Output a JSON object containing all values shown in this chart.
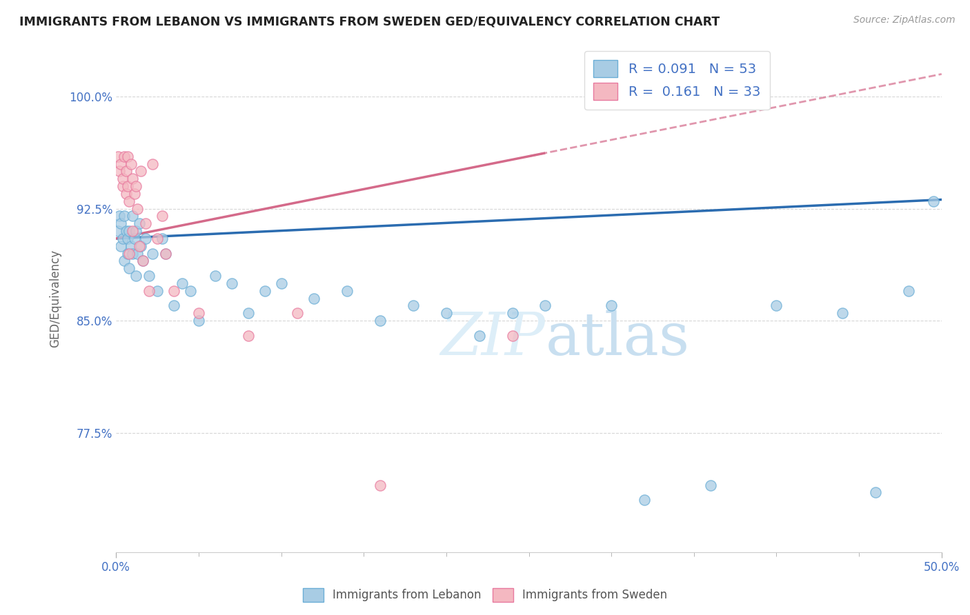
{
  "title": "IMMIGRANTS FROM LEBANON VS IMMIGRANTS FROM SWEDEN GED/EQUIVALENCY CORRELATION CHART",
  "source": "Source: ZipAtlas.com",
  "xlabel": "",
  "ylabel": "GED/Equivalency",
  "xlim": [
    0.0,
    0.5
  ],
  "ylim": [
    0.695,
    1.035
  ],
  "yticks": [
    0.775,
    0.85,
    0.925,
    1.0
  ],
  "ytick_labels": [
    "77.5%",
    "85.0%",
    "92.5%",
    "100.0%"
  ],
  "xticks": [
    0.0,
    0.5
  ],
  "xtick_labels": [
    "0.0%",
    "50.0%"
  ],
  "lebanon_color": "#a8cce4",
  "lebanon_edge": "#6baed6",
  "sweden_color": "#f4b8c1",
  "sweden_edge": "#e87a9f",
  "trend_lebanon_color": "#2b6cb0",
  "trend_sweden_color": "#d46a8a",
  "R_lebanon": 0.091,
  "N_lebanon": 53,
  "R_sweden": 0.161,
  "N_sweden": 33,
  "background_color": "#ffffff",
  "grid_color": "#cccccc",
  "lebanon_x": [
    0.001,
    0.002,
    0.003,
    0.003,
    0.004,
    0.005,
    0.005,
    0.006,
    0.007,
    0.007,
    0.008,
    0.008,
    0.009,
    0.01,
    0.01,
    0.011,
    0.012,
    0.012,
    0.013,
    0.014,
    0.015,
    0.016,
    0.018,
    0.02,
    0.022,
    0.025,
    0.028,
    0.03,
    0.035,
    0.04,
    0.045,
    0.05,
    0.06,
    0.07,
    0.08,
    0.09,
    0.1,
    0.12,
    0.14,
    0.16,
    0.18,
    0.2,
    0.22,
    0.24,
    0.26,
    0.3,
    0.32,
    0.36,
    0.4,
    0.44,
    0.46,
    0.48,
    0.495
  ],
  "lebanon_y": [
    0.91,
    0.92,
    0.915,
    0.9,
    0.905,
    0.89,
    0.92,
    0.91,
    0.895,
    0.905,
    0.91,
    0.885,
    0.9,
    0.92,
    0.895,
    0.905,
    0.88,
    0.91,
    0.895,
    0.915,
    0.9,
    0.89,
    0.905,
    0.88,
    0.895,
    0.87,
    0.905,
    0.895,
    0.86,
    0.875,
    0.87,
    0.85,
    0.88,
    0.875,
    0.855,
    0.87,
    0.875,
    0.865,
    0.87,
    0.85,
    0.86,
    0.855,
    0.84,
    0.855,
    0.86,
    0.86,
    0.73,
    0.74,
    0.86,
    0.855,
    0.735,
    0.87,
    0.93
  ],
  "sweden_x": [
    0.001,
    0.002,
    0.003,
    0.004,
    0.004,
    0.005,
    0.006,
    0.006,
    0.007,
    0.007,
    0.008,
    0.008,
    0.009,
    0.01,
    0.01,
    0.011,
    0.012,
    0.013,
    0.014,
    0.015,
    0.016,
    0.018,
    0.02,
    0.022,
    0.025,
    0.028,
    0.03,
    0.035,
    0.05,
    0.08,
    0.11,
    0.16,
    0.24
  ],
  "sweden_y": [
    0.96,
    0.95,
    0.955,
    0.94,
    0.945,
    0.96,
    0.935,
    0.95,
    0.94,
    0.96,
    0.93,
    0.895,
    0.955,
    0.945,
    0.91,
    0.935,
    0.94,
    0.925,
    0.9,
    0.95,
    0.89,
    0.915,
    0.87,
    0.955,
    0.905,
    0.92,
    0.895,
    0.87,
    0.855,
    0.84,
    0.855,
    0.74,
    0.84
  ],
  "legend_label_blue": "R =  0.091   N = 53",
  "legend_label_pink": "R =  0.161   N = 33",
  "bottom_label_lebanon": "Immigrants from Lebanon",
  "bottom_label_sweden": "Immigrants from Sweden"
}
